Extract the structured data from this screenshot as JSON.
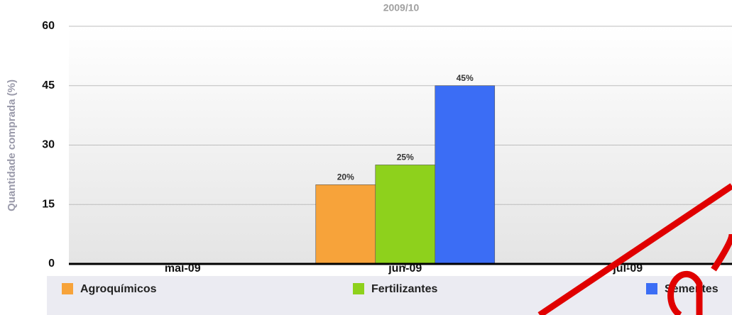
{
  "chart_data": {
    "type": "bar",
    "title": "2009/10",
    "y_label": "Quantidade comprada (%)",
    "categories": [
      "mai-09",
      "jun-09",
      "jul-09"
    ],
    "series": [
      {
        "name": "Agroquímicos",
        "color": "#f7a33a",
        "values": [
          null,
          20,
          null
        ],
        "value_labels": [
          null,
          "20%",
          null
        ]
      },
      {
        "name": "Fertilizantes",
        "color": "#8ed11c",
        "values": [
          null,
          25,
          null
        ],
        "value_labels": [
          null,
          "25%",
          null
        ]
      },
      {
        "name": "Sementes",
        "color": "#3b6df5",
        "values": [
          null,
          45,
          null
        ],
        "value_labels": [
          null,
          "45%",
          null
        ]
      }
    ],
    "ylim": [
      0,
      60
    ],
    "yticks": [
      0,
      15,
      30,
      45,
      60
    ],
    "grid": true
  }
}
